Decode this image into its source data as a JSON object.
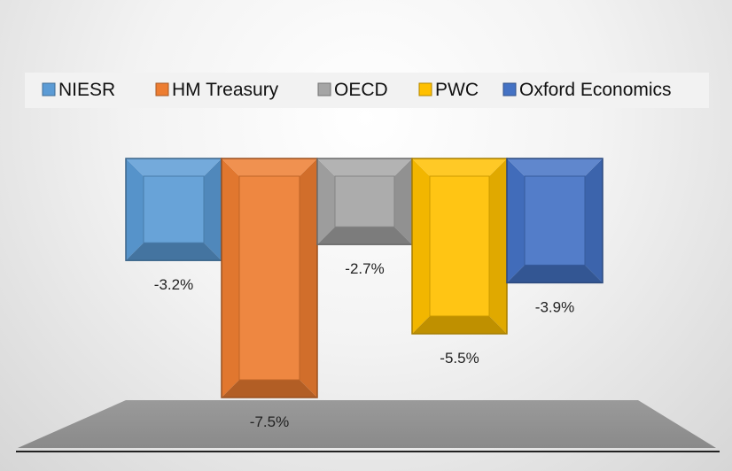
{
  "chart_data": {
    "type": "bar",
    "style": "3d-column",
    "categories": [
      "NIESR",
      "HM Treasury",
      "OECD",
      "PWC",
      "Oxford Economics"
    ],
    "values": [
      -3.2,
      -7.5,
      -2.7,
      -5.5,
      -3.9
    ],
    "value_labels": [
      "-3.2%",
      "-7.5%",
      "-2.7%",
      "-5.5%",
      "-3.9%"
    ],
    "colors": [
      "#5b9bd5",
      "#ed7d31",
      "#a5a5a5",
      "#ffc000",
      "#4472c4"
    ],
    "legend_position": "top",
    "ylim": [
      -8,
      0
    ],
    "grid": false
  }
}
